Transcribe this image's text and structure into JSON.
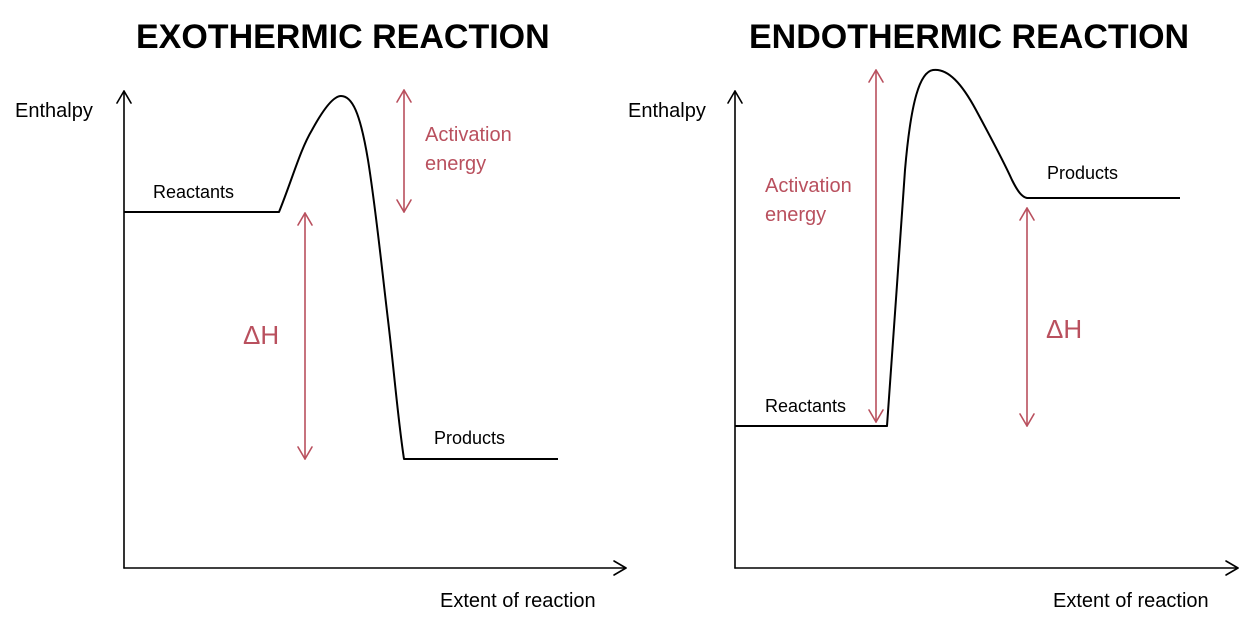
{
  "colors": {
    "ink": "#000000",
    "accent": "#b9505e"
  },
  "diagrams": {
    "exothermic": {
      "title": "EXOTHERMIC REACTION",
      "y_axis_label": "Enthalpy",
      "x_axis_label": "Extent of reaction",
      "reactants_label": "Reactants",
      "products_label": "Products",
      "activation_energy_label": "Activation energy",
      "delta_h_label": "ΔH"
    },
    "endothermic": {
      "title": "ENDOTHERMIC REACTION",
      "y_axis_label": "Enthalpy",
      "x_axis_label": "Extent of reaction",
      "reactants_label": "Reactants",
      "products_label": "Products",
      "activation_energy_label": "Activation energy",
      "delta_h_label": "ΔH"
    }
  }
}
